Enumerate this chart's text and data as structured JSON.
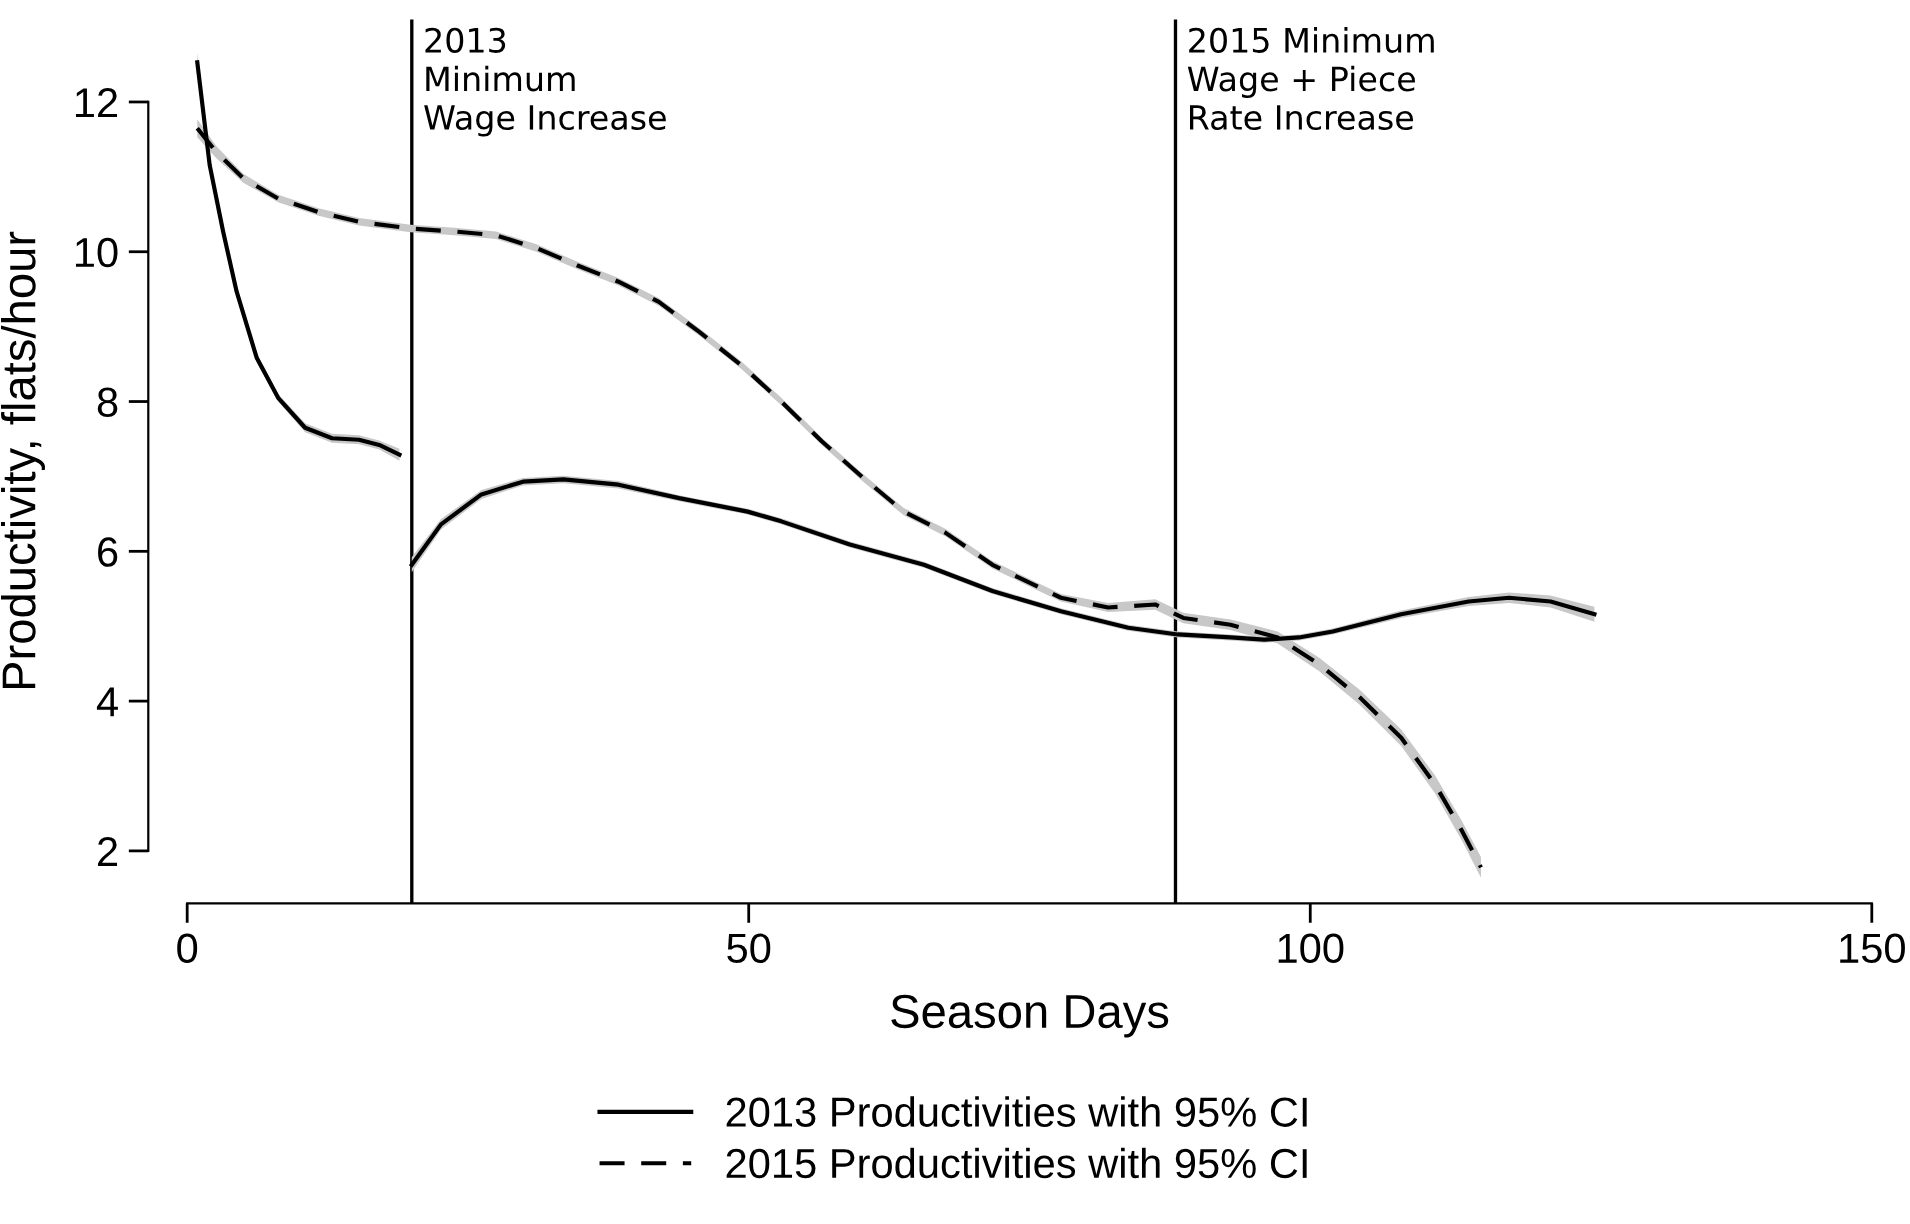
{
  "chart_data": {
    "type": "line",
    "xlabel": "Season Days",
    "ylabel": "Productivity, flats/hour",
    "xlim": [
      0,
      150
    ],
    "ylim": [
      1.3,
      13.1
    ],
    "xticks": [
      0,
      50,
      100,
      150
    ],
    "yticks": [
      2,
      4,
      6,
      8,
      10,
      12
    ],
    "grid": false,
    "legend": "bottom",
    "marker": "none",
    "ref_lines": [
      {
        "axis": "x",
        "value": 20,
        "label": "2013\nMinimum\nWage Increase",
        "color": "#000000"
      },
      {
        "axis": "x",
        "value": 88,
        "label": "2015 Minimum\nWage + Piece\nRate Increase",
        "color": "#000000"
      }
    ],
    "series": [
      {
        "name": "2013 Productivities with 95% CI",
        "color": "#000000",
        "line_style": "solid",
        "x": [
          0.9,
          2.0,
          3.2,
          4.4,
          6.2,
          8.1,
          10.5,
          12.9,
          15.3,
          17.1,
          18.9,
          19.5,
          20.0,
          22.6,
          26.2,
          29.9,
          33.5,
          38.4,
          43.8,
          49.9,
          52.9,
          59.0,
          65.6,
          71.7,
          77.8,
          83.8,
          88.2,
          92.9,
          95.9,
          99.0,
          102.0,
          108.1,
          114.1,
          117.7,
          121.4,
          125.3
        ],
        "values": [
          12.53,
          11.16,
          10.27,
          9.47,
          8.58,
          8.05,
          7.65,
          7.51,
          7.49,
          7.42,
          7.29,
          null,
          5.82,
          6.36,
          6.76,
          6.93,
          6.96,
          6.89,
          6.71,
          6.53,
          6.4,
          6.09,
          5.82,
          5.47,
          5.2,
          4.98,
          4.89,
          4.85,
          4.82,
          4.85,
          4.93,
          5.16,
          5.33,
          5.38,
          5.33,
          5.16
        ],
        "lower": [
          12.4,
          11.06,
          10.19,
          9.4,
          8.52,
          8.0,
          7.59,
          7.45,
          7.43,
          7.36,
          7.21,
          null,
          5.72,
          6.29,
          6.7,
          6.88,
          6.91,
          6.84,
          6.67,
          6.49,
          6.36,
          6.05,
          5.78,
          5.43,
          5.16,
          4.94,
          4.85,
          4.81,
          4.78,
          4.81,
          4.89,
          5.11,
          5.27,
          5.31,
          5.25,
          5.06
        ],
        "upper": [
          12.66,
          11.26,
          10.35,
          9.54,
          8.64,
          8.1,
          7.71,
          7.57,
          7.55,
          7.48,
          7.37,
          null,
          5.92,
          6.43,
          6.82,
          6.98,
          7.01,
          6.94,
          6.75,
          6.57,
          6.44,
          6.13,
          5.86,
          5.51,
          5.24,
          5.02,
          4.93,
          4.89,
          4.86,
          4.89,
          4.97,
          5.21,
          5.39,
          5.45,
          5.41,
          5.26
        ]
      },
      {
        "name": "2015 Productivities with 95% CI",
        "color": "#000000",
        "line_style": "dashed",
        "x": [
          0.9,
          2.6,
          5.0,
          8.1,
          11.7,
          15.3,
          19.9,
          23.8,
          27.5,
          31.1,
          34.7,
          38.4,
          42.0,
          45.6,
          49.3,
          52.9,
          56.5,
          60.2,
          63.8,
          67.5,
          71.7,
          77.8,
          82.0,
          86.2,
          88.7,
          92.9,
          97.1,
          100.8,
          104.4,
          108.1,
          111.1,
          113.5,
          115.2
        ],
        "values": [
          11.65,
          11.33,
          10.98,
          10.71,
          10.53,
          10.4,
          10.31,
          10.27,
          10.22,
          10.05,
          9.82,
          9.6,
          9.33,
          8.93,
          8.49,
          8.0,
          7.47,
          6.98,
          6.53,
          6.25,
          5.82,
          5.38,
          5.25,
          5.29,
          5.11,
          5.02,
          4.85,
          4.49,
          4.05,
          3.51,
          2.89,
          2.27,
          1.78
        ],
        "lower": [
          11.53,
          11.25,
          10.92,
          10.66,
          10.48,
          10.35,
          10.26,
          10.22,
          10.17,
          10.0,
          9.77,
          9.55,
          9.28,
          8.88,
          8.44,
          7.95,
          7.42,
          6.93,
          6.48,
          6.2,
          5.77,
          5.33,
          5.19,
          5.22,
          5.04,
          4.95,
          4.77,
          4.4,
          3.95,
          3.4,
          2.77,
          2.14,
          1.64
        ],
        "upper": [
          11.77,
          11.41,
          11.04,
          10.76,
          10.58,
          10.45,
          10.36,
          10.32,
          10.27,
          10.1,
          9.87,
          9.65,
          9.38,
          8.98,
          8.54,
          8.05,
          7.52,
          7.03,
          6.58,
          6.3,
          5.87,
          5.43,
          5.31,
          5.36,
          5.18,
          5.09,
          4.93,
          4.58,
          4.15,
          3.62,
          3.01,
          2.4,
          1.92
        ]
      }
    ]
  }
}
